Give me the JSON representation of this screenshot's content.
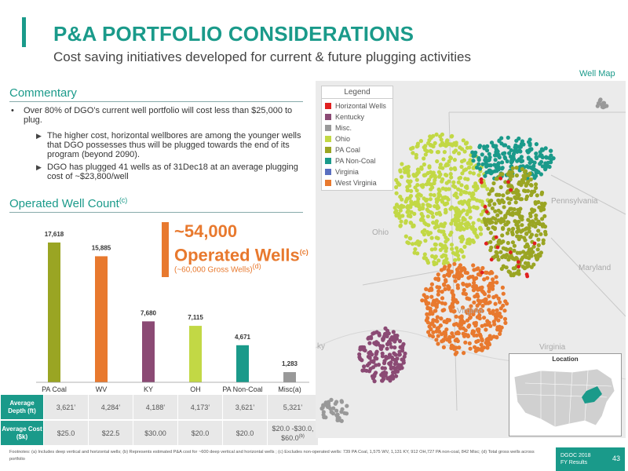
{
  "header": {
    "title": "P&A PORTFOLIO CONSIDERATIONS",
    "subtitle": "Cost saving initiatives developed for current & future plugging activities",
    "map_label": "Well Map"
  },
  "commentary": {
    "heading": "Commentary",
    "bullet": "Over 80% of DGO’s current well portfolio will cost less than $25,000 to plug.",
    "subs": [
      "The higher cost, horizontal wellbores are among the younger wells that DGO possesses thus will be plugged towards the end of its program (beyond 2090).",
      "DGO has plugged 41 wells as of 31Dec18 at an average plugging cost of ~$23,800/well"
    ]
  },
  "well_count": {
    "heading": "Operated Well Count",
    "heading_sup": "(c)"
  },
  "callout": {
    "big_line1": "~54,000",
    "big_line2": "Operated Wells",
    "big_sup": "(c)",
    "small": "(~60,000 Gross Wells)",
    "small_sup": "(d)"
  },
  "chart_data": {
    "type": "bar",
    "categories": [
      "PA Coal",
      "WV",
      "KY",
      "OH",
      "PA Non-Coal",
      "Misc"
    ],
    "category_suffix": {
      "Misc": "(a)"
    },
    "values": [
      17618,
      15885,
      7680,
      7115,
      4671,
      1283
    ],
    "value_labels": [
      "17,618",
      "15,885",
      "7,680",
      "7,115",
      "4,671",
      "1,283"
    ],
    "colors": [
      "#9aa523",
      "#e8792e",
      "#8b4a74",
      "#c2d845",
      "#1a9a8a",
      "#999999"
    ],
    "ylim": [
      0,
      18500
    ],
    "grid": false,
    "legend": "none"
  },
  "stats_table": {
    "rows": [
      {
        "label": "Average Depth (ft)",
        "cells": [
          "3,621’",
          "4,284’",
          "4,188’",
          "4,173’",
          "3,621’",
          "5,321’"
        ]
      },
      {
        "label": "Average Cost ($k)",
        "cells": [
          "$25.0",
          "$22.5",
          "$30.00",
          "$20.0",
          "$20.0",
          "$20.0 -$30.0, $60.0"
        ],
        "last_sup": "(b)"
      }
    ]
  },
  "map": {
    "legend_title": "Legend",
    "legend": [
      {
        "label": "Horizontal Wells",
        "color": "#e02020"
      },
      {
        "label": "Kentucky",
        "color": "#8b4a74"
      },
      {
        "label": "Misc.",
        "color": "#999999"
      },
      {
        "label": "Ohio",
        "color": "#c2d845"
      },
      {
        "label": "PA Coal",
        "color": "#9aa523"
      },
      {
        "label": "PA Non-Coal",
        "color": "#1a9a8a"
      },
      {
        "label": "Virginia",
        "color": "#5a6fc0"
      },
      {
        "label": "West Virginia",
        "color": "#e8792e"
      }
    ],
    "place_labels": [
      "Ohio",
      "Pennsylvania",
      "Maryland",
      "Virginia",
      "Virginia",
      "ky"
    ],
    "inset_title": "Location"
  },
  "footer": {
    "footnote": "Footnotes: (a) Includes deep vertical and horizontal wells; (b) Represents estimated P&A cost for ~600 deep vertical and horizontal wells ; (c) Excludes non-operated wells: 739 PA Coal, 1,575 WV, 1,131 KY, 912 OH,727 PA non-coal, 842 Misc; (d) Total gross wells across portfolio",
    "company": "DGOC 2018",
    "report": "FY Results",
    "page": "43"
  }
}
